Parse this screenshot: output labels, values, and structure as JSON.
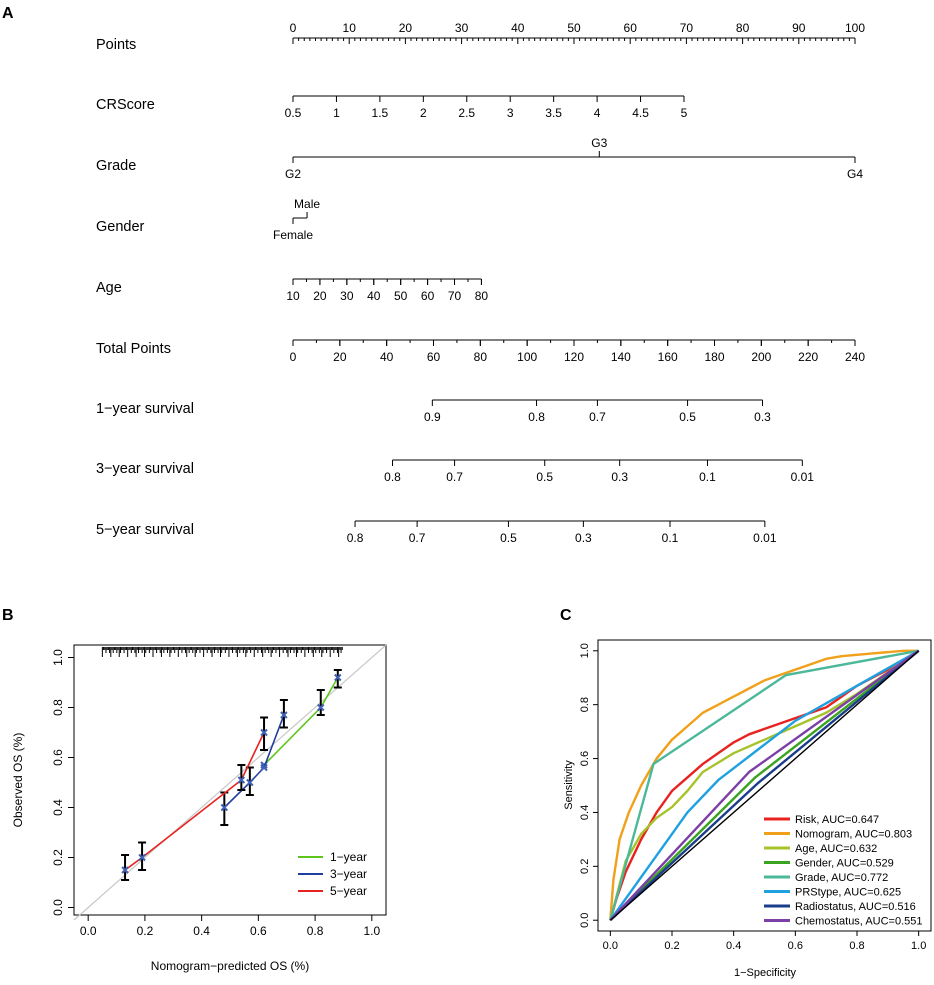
{
  "panels": {
    "a": "A",
    "b": "B",
    "c": "C"
  },
  "chart_data": [
    {
      "type": "nomogram",
      "panel": "A",
      "rows": [
        {
          "label": "Points",
          "scale": [
            0,
            100
          ],
          "ticks": [
            {
              "v": 0,
              "t": "0"
            },
            {
              "v": 10,
              "t": "10"
            },
            {
              "v": 20,
              "t": "20"
            },
            {
              "v": 30,
              "t": "30"
            },
            {
              "v": 40,
              "t": "40"
            },
            {
              "v": 50,
              "t": "50"
            },
            {
              "v": 60,
              "t": "60"
            },
            {
              "v": 70,
              "t": "70"
            },
            {
              "v": 80,
              "t": "80"
            },
            {
              "v": 90,
              "t": "90"
            },
            {
              "v": 100,
              "t": "100"
            }
          ]
        },
        {
          "label": "CRScore",
          "scale": [
            0,
            100
          ],
          "ticks": [
            {
              "v": 0,
              "t": "0.5"
            },
            {
              "v": 7.73,
              "t": "1"
            },
            {
              "v": 15.46,
              "t": "1.5"
            },
            {
              "v": 23.19,
              "t": "2"
            },
            {
              "v": 30.92,
              "t": "2.5"
            },
            {
              "v": 38.65,
              "t": "3"
            },
            {
              "v": 46.38,
              "t": "3.5"
            },
            {
              "v": 54.11,
              "t": "4"
            },
            {
              "v": 61.84,
              "t": "4.5"
            },
            {
              "v": 69.57,
              "t": "5"
            }
          ]
        },
        {
          "label": "Grade",
          "scale": [
            0,
            100
          ],
          "ticks": [
            {
              "v": 0,
              "t": "G2",
              "pos": "below"
            },
            {
              "v": 54.5,
              "t": "G3",
              "pos": "above"
            },
            {
              "v": 100,
              "t": "G4",
              "pos": "below"
            }
          ]
        },
        {
          "label": "Gender",
          "scale": [
            0,
            100
          ],
          "ticks": [
            {
              "v": 0,
              "t": "Female",
              "pos": "below"
            },
            {
              "v": 2.5,
              "t": "Male",
              "pos": "above"
            }
          ]
        },
        {
          "label": "Age",
          "scale": [
            0,
            100
          ],
          "ticks": [
            {
              "v": 0,
              "t": "10"
            },
            {
              "v": 4.79,
              "t": "20"
            },
            {
              "v": 9.58,
              "t": "30"
            },
            {
              "v": 14.37,
              "t": "40"
            },
            {
              "v": 19.16,
              "t": "50"
            },
            {
              "v": 23.95,
              "t": "60"
            },
            {
              "v": 28.74,
              "t": "70"
            },
            {
              "v": 33.53,
              "t": "80"
            }
          ]
        },
        {
          "label": "Total Points",
          "scale": [
            0,
            240
          ],
          "ticks": [
            {
              "v": 0,
              "t": "0"
            },
            {
              "v": 20,
              "t": "20"
            },
            {
              "v": 40,
              "t": "40"
            },
            {
              "v": 60,
              "t": "60"
            },
            {
              "v": 80,
              "t": "80"
            },
            {
              "v": 100,
              "t": "100"
            },
            {
              "v": 120,
              "t": "120"
            },
            {
              "v": 140,
              "t": "140"
            },
            {
              "v": 160,
              "t": "160"
            },
            {
              "v": 180,
              "t": "180"
            },
            {
              "v": 200,
              "t": "200"
            },
            {
              "v": 220,
              "t": "220"
            },
            {
              "v": 240,
              "t": "240"
            }
          ]
        },
        {
          "label": "1−year survival",
          "scale": [
            0,
            240
          ],
          "ticks": [
            {
              "v": 59.5,
              "t": "0.9"
            },
            {
              "v": 104,
              "t": "0.8"
            },
            {
              "v": 130,
              "t": "0.7"
            },
            {
              "v": 168.5,
              "t": "0.5"
            },
            {
              "v": 200.5,
              "t": "0.3"
            }
          ]
        },
        {
          "label": "3−year survival",
          "scale": [
            0,
            240
          ],
          "ticks": [
            {
              "v": 42.5,
              "t": "0.8"
            },
            {
              "v": 69,
              "t": "0.7"
            },
            {
              "v": 107.5,
              "t": "0.5"
            },
            {
              "v": 139.5,
              "t": "0.3"
            },
            {
              "v": 177,
              "t": "0.1"
            },
            {
              "v": 217.5,
              "t": "0.01"
            }
          ]
        },
        {
          "label": "5−year survival",
          "scale": [
            0,
            240
          ],
          "ticks": [
            {
              "v": 26.5,
              "t": "0.8"
            },
            {
              "v": 53,
              "t": "0.7"
            },
            {
              "v": 92,
              "t": "0.5"
            },
            {
              "v": 124,
              "t": "0.3"
            },
            {
              "v": 161,
              "t": "0.1"
            },
            {
              "v": 201.5,
              "t": "0.01"
            }
          ]
        }
      ]
    },
    {
      "type": "calibration",
      "panel": "B",
      "xlabel": "Nomogram−predicted OS (%)",
      "ylabel": "Observed OS (%)",
      "xlim": [
        -0.05,
        1.05
      ],
      "ylim": [
        -0.03,
        1.05
      ],
      "xticks": [
        0.0,
        0.2,
        0.4,
        0.6,
        0.8,
        1.0
      ],
      "yticks": [
        0.0,
        0.2,
        0.4,
        0.6,
        0.8,
        1.0
      ],
      "series": [
        {
          "name": "1−year",
          "color": "#5fc51b",
          "points": [
            [
              0.62,
              0.57
            ],
            [
              0.82,
              0.8
            ],
            [
              0.88,
              0.92
            ]
          ],
          "ci": [
            [
              0.82,
              0.77,
              0.87
            ],
            [
              0.88,
              0.88,
              0.95
            ]
          ]
        },
        {
          "name": "3−year",
          "color": "#1f3f9f",
          "points": [
            [
              0.48,
              0.4
            ],
            [
              0.57,
              0.5
            ],
            [
              0.62,
              0.56
            ],
            [
              0.69,
              0.77
            ]
          ],
          "ci": [
            [
              0.48,
              0.33,
              0.46
            ],
            [
              0.57,
              0.45,
              0.56
            ],
            [
              0.69,
              0.72,
              0.83
            ]
          ]
        },
        {
          "name": "5−year",
          "color": "#e8231f",
          "points": [
            [
              0.13,
              0.15
            ],
            [
              0.19,
              0.2
            ],
            [
              0.54,
              0.51
            ],
            [
              0.62,
              0.7
            ]
          ],
          "ci": [
            [
              0.13,
              0.11,
              0.21
            ],
            [
              0.19,
              0.15,
              0.26
            ],
            [
              0.54,
              0.47,
              0.57
            ],
            [
              0.62,
              0.63,
              0.76
            ]
          ]
        }
      ],
      "legend": {
        "position": "bottom-right"
      }
    },
    {
      "type": "line",
      "panel": "C",
      "title": "",
      "xlabel": "1−Specificity",
      "ylabel": "Sensitivity",
      "xlim": [
        -0.04,
        1.04
      ],
      "ylim": [
        -0.04,
        1.04
      ],
      "xticks": [
        0.0,
        0.2,
        0.4,
        0.6,
        0.8,
        1.0
      ],
      "yticks": [
        0.0,
        0.2,
        0.4,
        0.6,
        0.8,
        1.0
      ],
      "series": [
        {
          "name": "Risk, AUC=0.647",
          "color": "#e8231f",
          "x": [
            0,
            0.02,
            0.05,
            0.1,
            0.15,
            0.2,
            0.25,
            0.3,
            0.35,
            0.4,
            0.45,
            0.5,
            0.55,
            0.6,
            0.65,
            0.7,
            0.75,
            0.8,
            0.85,
            0.9,
            0.95,
            1.0
          ],
          "y": [
            0,
            0.08,
            0.18,
            0.3,
            0.4,
            0.48,
            0.53,
            0.58,
            0.62,
            0.66,
            0.69,
            0.71,
            0.73,
            0.75,
            0.77,
            0.79,
            0.83,
            0.87,
            0.9,
            0.93,
            0.96,
            1.0
          ]
        },
        {
          "name": "Nomogram, AUC=0.803",
          "color": "#f0a01a",
          "x": [
            0,
            0.01,
            0.03,
            0.06,
            0.1,
            0.15,
            0.2,
            0.25,
            0.3,
            0.35,
            0.4,
            0.45,
            0.5,
            0.55,
            0.6,
            0.65,
            0.7,
            0.75,
            0.8,
            0.85,
            0.9,
            0.95,
            1.0
          ],
          "y": [
            0,
            0.15,
            0.3,
            0.4,
            0.5,
            0.6,
            0.67,
            0.72,
            0.77,
            0.8,
            0.83,
            0.86,
            0.89,
            0.91,
            0.93,
            0.95,
            0.97,
            0.98,
            0.985,
            0.99,
            0.995,
            1.0,
            1.0
          ]
        },
        {
          "name": "Age, AUC=0.632",
          "color": "#a6c32a",
          "x": [
            0,
            0.05,
            0.1,
            0.15,
            0.2,
            0.25,
            0.3,
            0.4,
            0.5,
            0.6,
            0.7,
            0.8,
            0.9,
            1.0
          ],
          "y": [
            0,
            0.22,
            0.32,
            0.38,
            0.42,
            0.48,
            0.55,
            0.62,
            0.67,
            0.72,
            0.77,
            0.84,
            0.92,
            1.0
          ]
        },
        {
          "name": "Gender, AUC=0.529",
          "color": "#3aa31f",
          "x": [
            0,
            0.47,
            1.0
          ],
          "y": [
            0,
            0.53,
            1.0
          ]
        },
        {
          "name": "Grade, AUC=0.772",
          "color": "#4bb89a",
          "x": [
            0,
            0.14,
            0.57,
            1.0
          ],
          "y": [
            0,
            0.58,
            0.91,
            1.0
          ]
        },
        {
          "name": "PRStype, AUC=0.625",
          "color": "#1fa0e0",
          "x": [
            0,
            0.25,
            0.35,
            0.6,
            1.0
          ],
          "y": [
            0,
            0.4,
            0.52,
            0.74,
            1.0
          ]
        },
        {
          "name": "Radiostatus, AUC=0.516",
          "color": "#1a3d8c",
          "x": [
            0,
            0.48,
            1.0
          ],
          "y": [
            0,
            0.51,
            1.0
          ]
        },
        {
          "name": "Chemostatus, AUC=0.551",
          "color": "#7b3fa6",
          "x": [
            0,
            0.45,
            1.0
          ],
          "y": [
            0,
            0.55,
            1.0
          ]
        }
      ],
      "diagonal": true,
      "legend": {
        "position": "bottom-right"
      }
    }
  ]
}
